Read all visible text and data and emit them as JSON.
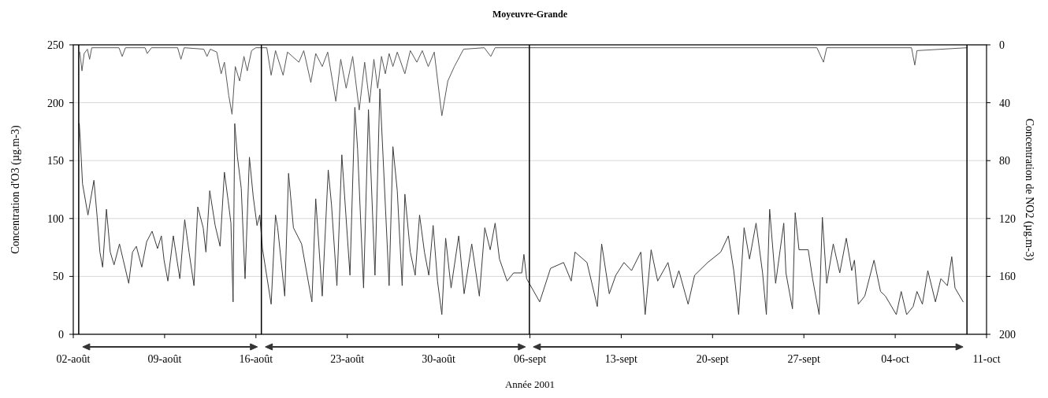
{
  "chart_data": {
    "type": "line",
    "title": "Moyeuvre-Grande",
    "xlabel": "Année 2001",
    "ylabel": "Concentration d'O3 (µg.m-3)",
    "y2label": "Concentration de NO2 (µg.m-3)",
    "xlim": [
      "2001-08-02",
      "2001-10-11"
    ],
    "xticks": [
      {
        "value": "2001-08-02",
        "label": "02-août"
      },
      {
        "value": "2001-08-09",
        "label": "09-août"
      },
      {
        "value": "2001-08-16",
        "label": "16-août"
      },
      {
        "value": "2001-08-23",
        "label": "23-août"
      },
      {
        "value": "2001-08-30",
        "label": "30-août"
      },
      {
        "value": "2001-09-06",
        "label": "06-sept"
      },
      {
        "value": "2001-09-13",
        "label": "13-sept"
      },
      {
        "value": "2001-09-20",
        "label": "20-sept"
      },
      {
        "value": "2001-09-27",
        "label": "27-sept"
      },
      {
        "value": "2001-10-04",
        "label": "04-oct"
      },
      {
        "value": "2001-10-11",
        "label": "11-oct"
      }
    ],
    "ylim": [
      0,
      250
    ],
    "yticks": [
      0,
      50,
      100,
      150,
      200,
      250
    ],
    "y2lim": [
      200,
      0
    ],
    "y2ticks": [
      0,
      40,
      80,
      120,
      160,
      200
    ],
    "grid": "y",
    "marker": "none",
    "line_style": "solid",
    "ref_lines": [
      {
        "axis": "x",
        "value": "2001-08-02T10:00",
        "color": "#000000"
      },
      {
        "axis": "x",
        "value": "2001-08-16T10:00",
        "color": "#000000"
      },
      {
        "axis": "x",
        "value": "2001-09-05T23:00",
        "color": "#000000"
      },
      {
        "axis": "x",
        "value": "2001-10-09T12:00",
        "color": "#000000"
      }
    ],
    "series": [
      {
        "color": "#3c3c3c",
        "x": [
          "2001-08-02T11:00",
          "2001-08-02T13:00",
          "2001-08-02T17:00",
          "2001-08-03T03:00",
          "2001-08-03T14:00",
          "2001-08-03T20:00",
          "2001-08-04T01:00",
          "2001-08-04T06:00",
          "2001-08-04T13:00",
          "2001-08-04T20:00",
          "2001-08-05T03:00",
          "2001-08-05T13:00",
          "2001-08-05T20:00",
          "2001-08-06T06:00",
          "2001-08-06T13:00",
          "2001-08-06T20:00",
          "2001-08-07T06:00",
          "2001-08-07T15:00",
          "2001-08-08T01:00",
          "2001-08-08T11:00",
          "2001-08-08T18:00",
          "2001-08-08T23:00",
          "2001-08-09T06:00",
          "2001-08-09T16:00",
          "2001-08-10T04:00",
          "2001-08-10T13:00",
          "2001-08-10T21:00",
          "2001-08-11T06:00",
          "2001-08-11T13:00",
          "2001-08-11T23:00",
          "2001-08-12T04:00",
          "2001-08-12T11:00",
          "2001-08-12T21:00",
          "2001-08-13T06:00",
          "2001-08-13T14:00",
          "2001-08-13T21:00",
          "2001-08-14T02:00",
          "2001-08-14T06:00",
          "2001-08-14T09:00",
          "2001-08-14T14:00",
          "2001-08-14T21:00",
          "2001-08-15T04:00",
          "2001-08-15T12:00",
          "2001-08-15T19:00",
          "2001-08-16T02:00",
          "2001-08-16T07:00",
          "2001-08-16T12:00",
          "2001-08-17T04:00",
          "2001-08-17T12:00",
          "2001-08-17T16:00",
          "2001-08-18T05:00",
          "2001-08-18T12:00",
          "2001-08-18T21:00",
          "2001-08-19T12:00",
          "2001-08-20T07:00",
          "2001-08-20T14:00",
          "2001-08-21T02:00",
          "2001-08-21T13:00",
          "2001-08-21T19:00",
          "2001-08-22T05:00",
          "2001-08-22T14:00",
          "2001-08-23T05:00",
          "2001-08-23T14:00",
          "2001-08-23T19:00",
          "2001-08-24T06:00",
          "2001-08-24T15:00",
          "2001-08-25T03:00",
          "2001-08-25T12:00",
          "2001-08-26T05:00",
          "2001-08-26T12:00",
          "2001-08-26T20:00",
          "2001-08-27T05:00",
          "2001-08-27T10:00",
          "2001-08-27T20:00",
          "2001-08-28T05:00",
          "2001-08-28T13:00",
          "2001-08-28T22:00",
          "2001-08-29T06:00",
          "2001-08-29T14:00",
          "2001-08-29T22:00",
          "2001-08-30T06:00",
          "2001-08-30T13:00",
          "2001-08-30T23:00",
          "2001-08-31T13:00",
          "2001-08-31T23:00",
          "2001-09-01T13:00",
          "2001-09-02T03:00",
          "2001-09-02T13:00",
          "2001-09-02T23:00",
          "2001-09-03T08:00",
          "2001-09-03T16:00",
          "2001-09-04T06:00",
          "2001-09-04T18:00",
          "2001-09-05T09:00",
          "2001-09-05T13:00",
          "2001-09-05T18:00",
          "2001-09-06T18:00",
          "2001-09-07T14:00",
          "2001-09-08T14:00",
          "2001-09-09T04:00",
          "2001-09-09T11:00",
          "2001-09-10T09:00",
          "2001-09-11T04:00",
          "2001-09-11T12:00",
          "2001-09-12T02:00",
          "2001-09-12T14:00",
          "2001-09-13T05:00",
          "2001-09-13T19:00",
          "2001-09-14T12:00",
          "2001-09-14T20:00",
          "2001-09-15T07:00",
          "2001-09-15T19:00",
          "2001-09-16T14:00",
          "2001-09-17T00:00",
          "2001-09-17T10:00",
          "2001-09-18T03:00",
          "2001-09-18T15:00",
          "2001-09-19T15:00",
          "2001-09-20T15:00",
          "2001-09-21T05:00",
          "2001-09-21T15:00",
          "2001-09-22T00:00",
          "2001-09-22T10:00",
          "2001-09-22T20:00",
          "2001-09-23T08:00",
          "2001-09-23T20:00",
          "2001-09-24T03:00",
          "2001-09-24T09:00",
          "2001-09-24T20:00",
          "2001-09-25T11:00",
          "2001-09-25T15:00",
          "2001-09-26T03:00",
          "2001-09-26T08:00",
          "2001-09-26T15:00",
          "2001-09-27T08:00",
          "2001-09-27T16:00",
          "2001-09-28T04:00",
          "2001-09-28T10:00",
          "2001-09-28T18:00",
          "2001-09-29T06:00",
          "2001-09-29T18:00",
          "2001-09-30T06:00",
          "2001-09-30T16:00",
          "2001-09-30T21:00",
          "2001-10-01T04:00",
          "2001-10-01T16:00",
          "2001-10-02T09:00",
          "2001-10-02T21:00",
          "2001-10-03T06:00",
          "2001-10-04T02:00",
          "2001-10-04T11:00",
          "2001-10-04T21:00",
          "2001-10-05T09:00",
          "2001-10-05T16:00",
          "2001-10-06T02:00",
          "2001-10-06T12:00",
          "2001-10-07T02:00",
          "2001-10-07T12:00",
          "2001-10-08T00:00",
          "2001-10-08T08:00",
          "2001-10-08T14:00",
          "2001-10-09T05:00"
        ],
        "values": [
          182,
          167,
          130,
          103,
          133,
          101,
          71,
          58,
          108,
          71,
          60,
          78,
          64,
          44,
          71,
          76,
          58,
          80,
          89,
          74,
          85,
          64,
          46,
          85,
          48,
          99,
          71,
          42,
          110,
          92,
          71,
          124,
          94,
          76,
          140,
          115,
          96,
          28,
          182,
          153,
          126,
          48,
          153,
          119,
          94,
          103,
          74,
          26,
          103,
          92,
          33,
          139,
          92,
          78,
          28,
          117,
          33,
          142,
          112,
          42,
          155,
          51,
          196,
          160,
          40,
          194,
          51,
          212,
          42,
          162,
          124,
          42,
          121,
          71,
          51,
          103,
          71,
          51,
          94,
          46,
          17,
          83,
          40,
          85,
          35,
          78,
          33,
          92,
          73,
          96,
          65,
          46,
          53,
          53,
          69,
          48,
          28,
          57,
          62,
          46,
          71,
          62,
          24,
          78,
          35,
          51,
          62,
          55,
          71,
          17,
          73,
          46,
          62,
          40,
          55,
          26,
          51,
          62,
          71,
          85,
          55,
          17,
          92,
          65,
          96,
          53,
          17,
          108,
          44,
          96,
          53,
          22,
          105,
          73,
          73,
          48,
          17,
          101,
          44,
          78,
          53,
          83,
          55,
          64,
          26,
          33,
          64,
          37,
          33,
          17,
          37,
          17,
          24,
          37,
          26,
          55,
          28,
          48,
          42,
          67,
          40,
          28
        ]
      },
      {
        "color": "#5a5a5a",
        "axis": "y2",
        "x": [
          "2001-08-02T12:00",
          "2001-08-02T16:00",
          "2001-08-02T20:00",
          "2001-08-03T02:00",
          "2001-08-03T06:00",
          "2001-08-03T10:00",
          "2001-08-05T12:00",
          "2001-08-05T18:00",
          "2001-08-06T00:00",
          "2001-08-07T12:00",
          "2001-08-07T16:00",
          "2001-08-08T00:00",
          "2001-08-10T00:00",
          "2001-08-10T06:00",
          "2001-08-10T12:00",
          "2001-08-12T00:00",
          "2001-08-12T06:00",
          "2001-08-12T12:00",
          "2001-08-13T00:00",
          "2001-08-13T08:00",
          "2001-08-13T14:00",
          "2001-08-13T22:00",
          "2001-08-14T04:00",
          "2001-08-14T10:00",
          "2001-08-14T18:00",
          "2001-08-15T02:00",
          "2001-08-15T08:00",
          "2001-08-15T16:00",
          "2001-08-16T00:00",
          "2001-08-16T20:00",
          "2001-08-17T04:00",
          "2001-08-17T12:00",
          "2001-08-18T02:00",
          "2001-08-18T10:00",
          "2001-08-19T07:00",
          "2001-08-19T16:00",
          "2001-08-20T05:00",
          "2001-08-20T14:00",
          "2001-08-21T02:00",
          "2001-08-21T12:00",
          "2001-08-22T03:00",
          "2001-08-22T12:00",
          "2001-08-22T22:00",
          "2001-08-23T10:00",
          "2001-08-23T22:00",
          "2001-08-24T08:00",
          "2001-08-24T17:00",
          "2001-08-25T01:00",
          "2001-08-25T08:00",
          "2001-08-25T15:00",
          "2001-08-25T22:00",
          "2001-08-26T05:00",
          "2001-08-26T12:00",
          "2001-08-26T20:00",
          "2001-08-27T10:00",
          "2001-08-27T20:00",
          "2001-08-28T08:00",
          "2001-08-28T18:00",
          "2001-08-29T05:00",
          "2001-08-29T16:00",
          "2001-08-30T06:00",
          "2001-08-30T17:00",
          "2001-08-31T05:00",
          "2001-08-31T22:00",
          "2001-09-02T12:00",
          "2001-09-03T00:00",
          "2001-09-03T08:00",
          "2001-09-28T00:00",
          "2001-09-28T12:00",
          "2001-09-28T18:00",
          "2001-10-05T06:00",
          "2001-10-05T12:00",
          "2001-10-05T16:00",
          "2001-10-09T12:00"
        ],
        "values": [
          5,
          18,
          6,
          3,
          10,
          2,
          2,
          8,
          2,
          2,
          6,
          2,
          2,
          10,
          2,
          3,
          8,
          3,
          5,
          20,
          12,
          35,
          48,
          15,
          25,
          8,
          18,
          4,
          2,
          2,
          21,
          4,
          21,
          5,
          12,
          4,
          26,
          6,
          15,
          5,
          39,
          10,
          30,
          8,
          45,
          12,
          40,
          10,
          30,
          8,
          20,
          6,
          15,
          5,
          20,
          4,
          12,
          4,
          15,
          5,
          49,
          25,
          15,
          3,
          2,
          8,
          2,
          2,
          12,
          2,
          2,
          14,
          4,
          2
        ]
      }
    ]
  }
}
